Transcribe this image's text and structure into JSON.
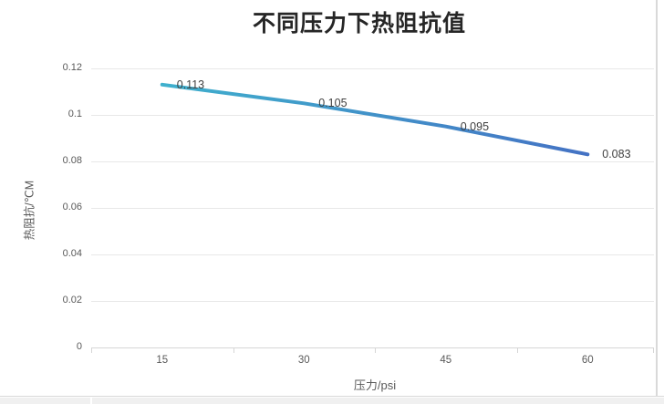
{
  "page": {
    "background": "#ffffff",
    "border_color": "#d9d9d9",
    "bottom_strip_color": "#f0f0f0"
  },
  "chart_data": {
    "type": "line",
    "title": "不同压力下热阻抗值",
    "xlabel": "压力/psi",
    "ylabel": "热阻抗/℃M",
    "categories": [
      "15",
      "30",
      "45",
      "60"
    ],
    "series": [
      {
        "values": [
          0.113,
          0.105,
          0.095,
          0.083
        ],
        "data_labels": [
          "0.113",
          "0.105",
          "0.095",
          "0.083"
        ],
        "line_gradient": [
          "#3fb0cd",
          "#4472c4"
        ],
        "line_width": 4
      }
    ],
    "ylim": [
      0,
      0.12
    ],
    "yticks": [
      {
        "value": 0,
        "label": "0"
      },
      {
        "value": 0.02,
        "label": "0.02"
      },
      {
        "value": 0.04,
        "label": "0.04"
      },
      {
        "value": 0.06,
        "label": "0.06"
      },
      {
        "value": 0.08,
        "label": "0.08"
      },
      {
        "value": 0.1,
        "label": "0.1"
      },
      {
        "value": 0.12,
        "label": "0.12"
      }
    ],
    "grid": true,
    "legend": "none",
    "colors": {
      "title": "#262626",
      "tick_label": "#595959",
      "axis_title": "#595959",
      "data_label": "#404040",
      "gridline": "#e8e8e8",
      "axis_line": "#d6d6d6"
    }
  }
}
